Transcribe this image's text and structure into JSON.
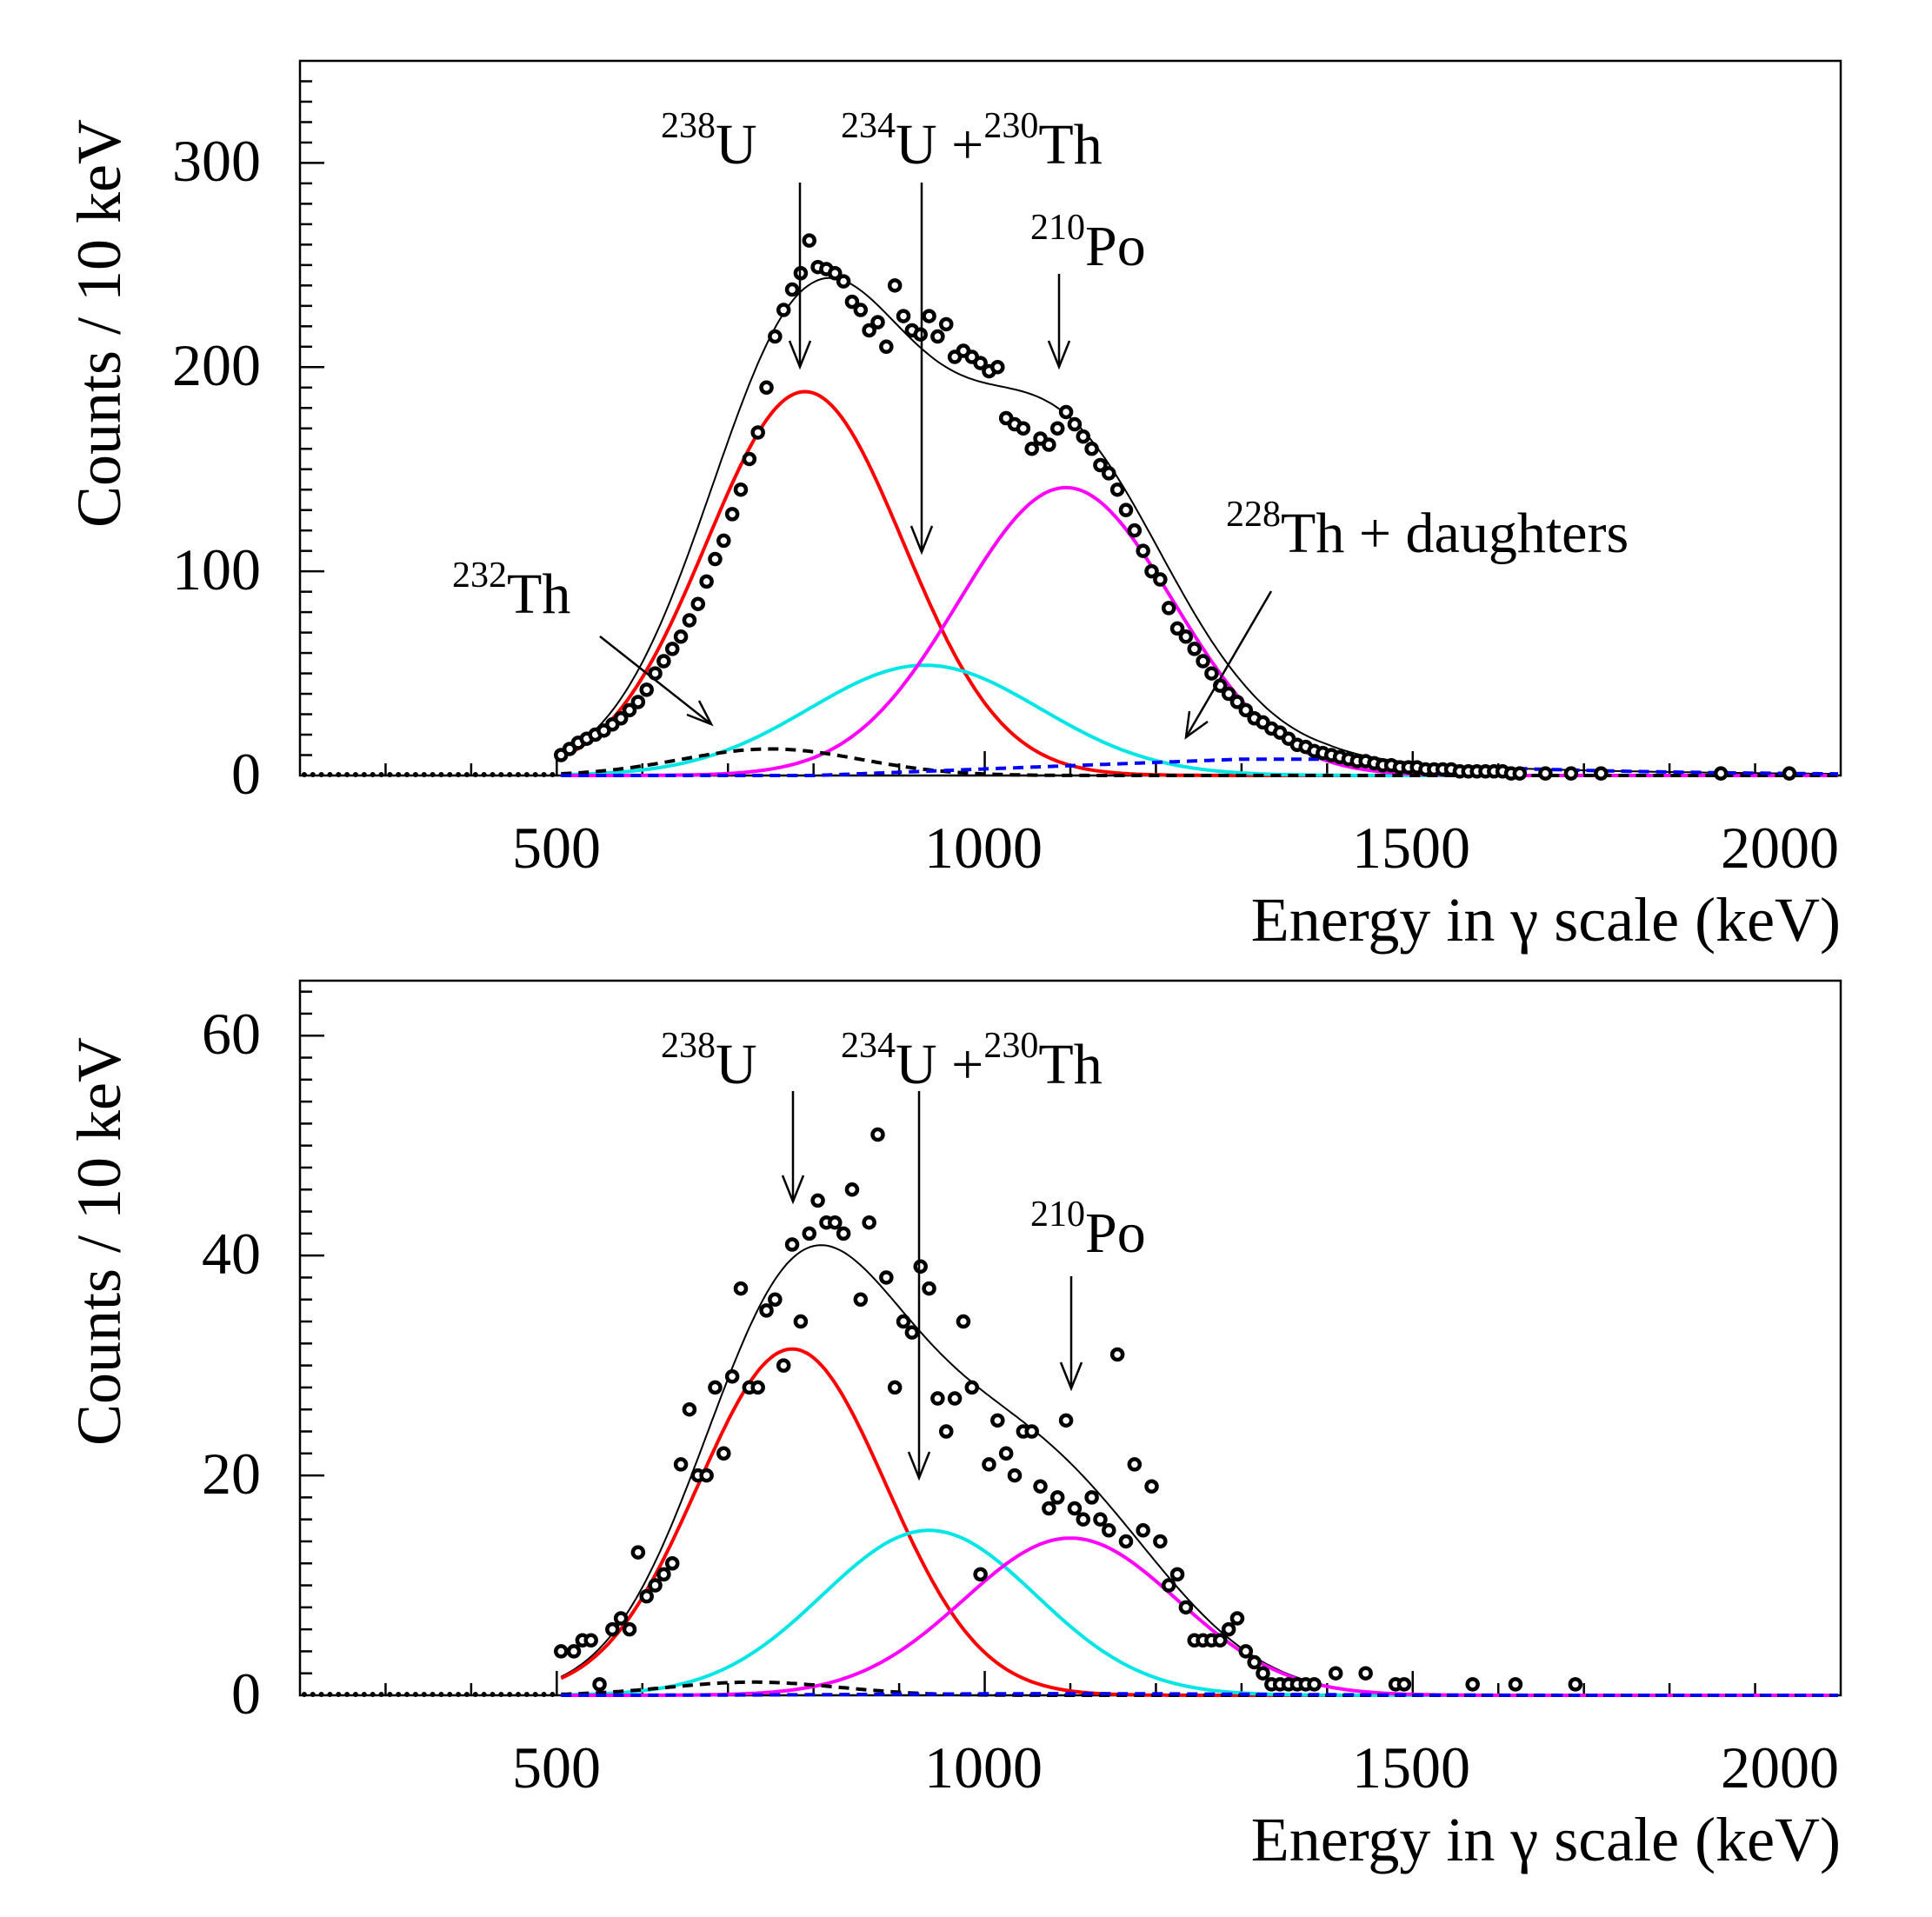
{
  "chart_data": [
    {
      "type": "scatter",
      "panel": "top",
      "xlabel": "Energy in γ scale (keV)",
      "ylabel": "Counts / 10 keV",
      "xlim": [
        200,
        2000
      ],
      "ylim": [
        0,
        350
      ],
      "xticks": [
        500,
        1000,
        1500,
        2000
      ],
      "yticks": [
        0,
        100,
        200,
        300
      ],
      "points": [
        [
          505,
          10
        ],
        [
          515,
          13
        ],
        [
          525,
          16
        ],
        [
          535,
          18
        ],
        [
          545,
          20
        ],
        [
          555,
          22
        ],
        [
          565,
          25
        ],
        [
          575,
          28
        ],
        [
          585,
          32
        ],
        [
          595,
          36
        ],
        [
          605,
          42
        ],
        [
          615,
          50
        ],
        [
          625,
          56
        ],
        [
          635,
          62
        ],
        [
          645,
          68
        ],
        [
          655,
          76
        ],
        [
          665,
          84
        ],
        [
          675,
          95
        ],
        [
          685,
          106
        ],
        [
          695,
          115
        ],
        [
          705,
          128
        ],
        [
          715,
          140
        ],
        [
          725,
          155
        ],
        [
          735,
          168
        ],
        [
          745,
          190
        ],
        [
          755,
          215
        ],
        [
          765,
          228
        ],
        [
          775,
          238
        ],
        [
          785,
          246
        ],
        [
          795,
          262
        ],
        [
          805,
          249
        ],
        [
          815,
          248
        ],
        [
          825,
          246
        ],
        [
          835,
          242
        ],
        [
          845,
          232
        ],
        [
          855,
          228
        ],
        [
          865,
          218
        ],
        [
          875,
          222
        ],
        [
          885,
          210
        ],
        [
          895,
          240
        ],
        [
          905,
          225
        ],
        [
          915,
          218
        ],
        [
          925,
          216
        ],
        [
          935,
          225
        ],
        [
          945,
          215
        ],
        [
          955,
          221
        ],
        [
          965,
          205
        ],
        [
          975,
          208
        ],
        [
          985,
          205
        ],
        [
          995,
          202
        ],
        [
          1005,
          198
        ],
        [
          1015,
          200
        ],
        [
          1025,
          175
        ],
        [
          1035,
          172
        ],
        [
          1045,
          170
        ],
        [
          1055,
          160
        ],
        [
          1065,
          165
        ],
        [
          1075,
          162
        ],
        [
          1085,
          170
        ],
        [
          1095,
          178
        ],
        [
          1105,
          172
        ],
        [
          1115,
          166
        ],
        [
          1125,
          160
        ],
        [
          1135,
          152
        ],
        [
          1145,
          148
        ],
        [
          1155,
          140
        ],
        [
          1165,
          130
        ],
        [
          1175,
          120
        ],
        [
          1185,
          110
        ],
        [
          1195,
          100
        ],
        [
          1205,
          96
        ],
        [
          1215,
          82
        ],
        [
          1225,
          72
        ],
        [
          1235,
          68
        ],
        [
          1245,
          62
        ],
        [
          1255,
          56
        ],
        [
          1265,
          50
        ],
        [
          1275,
          44
        ],
        [
          1285,
          40
        ],
        [
          1295,
          36
        ],
        [
          1305,
          32
        ],
        [
          1315,
          28
        ],
        [
          1325,
          26
        ],
        [
          1335,
          23
        ],
        [
          1345,
          21
        ],
        [
          1355,
          18
        ],
        [
          1365,
          15
        ],
        [
          1375,
          14
        ],
        [
          1385,
          12
        ],
        [
          1395,
          11
        ],
        [
          1405,
          10
        ],
        [
          1415,
          9
        ],
        [
          1425,
          8
        ],
        [
          1435,
          7
        ],
        [
          1445,
          7
        ],
        [
          1455,
          6
        ],
        [
          1465,
          5
        ],
        [
          1475,
          5
        ],
        [
          1485,
          4
        ],
        [
          1495,
          4
        ],
        [
          1505,
          4
        ],
        [
          1515,
          3
        ],
        [
          1525,
          3
        ],
        [
          1535,
          3
        ],
        [
          1545,
          3
        ],
        [
          1555,
          2
        ],
        [
          1565,
          2
        ],
        [
          1575,
          2
        ],
        [
          1585,
          2
        ],
        [
          1595,
          2
        ],
        [
          1605,
          2
        ],
        [
          1615,
          1
        ],
        [
          1625,
          1
        ],
        [
          1655,
          1
        ],
        [
          1685,
          1
        ],
        [
          1720,
          1
        ],
        [
          1860,
          1
        ],
        [
          1940,
          1
        ]
      ],
      "components": [
        {
          "name": "total fit",
          "color": "#000000",
          "dashed": false
        },
        {
          "name": "238U",
          "color": "#ff0000",
          "dashed": false,
          "mean": 790,
          "sigma": 115,
          "amp": 188
        },
        {
          "name": "234U + 230Th",
          "color": "#00e5e5",
          "dashed": false,
          "mean": 930,
          "sigma": 135,
          "amp": 54
        },
        {
          "name": "210Po",
          "color": "#ff00ff",
          "dashed": false,
          "mean": 1095,
          "sigma": 125,
          "amp": 141
        },
        {
          "name": "232Th",
          "color": "#000000",
          "dashed": true,
          "mean": 750,
          "sigma": 105,
          "amp": 13
        },
        {
          "name": "228Th + daughters",
          "color": "#0000ff",
          "dashed": true
        }
      ],
      "annotations": [
        {
          "iso": "238",
          "el": "U"
        },
        {
          "iso": "234",
          "el": "U +",
          "iso2": "230",
          "el2": "Th"
        },
        {
          "iso": "210",
          "el": "Po"
        },
        {
          "iso": "232",
          "el": "Th"
        },
        {
          "iso": "228",
          "el": "Th + daughters"
        }
      ]
    },
    {
      "type": "scatter",
      "panel": "bottom",
      "xlabel": "Energy in γ scale (keV)",
      "ylabel": "Counts / 10 keV",
      "xlim": [
        200,
        2000
      ],
      "ylim": [
        0,
        65
      ],
      "xticks": [
        500,
        1000,
        1500,
        2000
      ],
      "yticks": [
        0,
        20,
        40,
        60
      ],
      "points": [
        [
          505,
          4
        ],
        [
          520,
          4
        ],
        [
          530,
          5
        ],
        [
          540,
          5
        ],
        [
          550,
          1
        ],
        [
          565,
          6
        ],
        [
          575,
          7
        ],
        [
          585,
          6
        ],
        [
          595,
          13
        ],
        [
          605,
          9
        ],
        [
          615,
          10
        ],
        [
          625,
          11
        ],
        [
          635,
          12
        ],
        [
          645,
          21
        ],
        [
          655,
          26
        ],
        [
          665,
          20
        ],
        [
          675,
          20
        ],
        [
          685,
          28
        ],
        [
          695,
          22
        ],
        [
          705,
          29
        ],
        [
          715,
          37
        ],
        [
          725,
          28
        ],
        [
          735,
          28
        ],
        [
          745,
          35
        ],
        [
          755,
          36
        ],
        [
          765,
          30
        ],
        [
          775,
          41
        ],
        [
          785,
          34
        ],
        [
          795,
          42
        ],
        [
          805,
          45
        ],
        [
          815,
          43
        ],
        [
          825,
          43
        ],
        [
          835,
          42
        ],
        [
          845,
          46
        ],
        [
          855,
          36
        ],
        [
          865,
          43
        ],
        [
          875,
          51
        ],
        [
          885,
          38
        ],
        [
          895,
          28
        ],
        [
          905,
          34
        ],
        [
          915,
          33
        ],
        [
          925,
          39
        ],
        [
          935,
          37
        ],
        [
          945,
          27
        ],
        [
          955,
          24
        ],
        [
          965,
          27
        ],
        [
          975,
          34
        ],
        [
          985,
          28
        ],
        [
          995,
          11
        ],
        [
          1005,
          21
        ],
        [
          1015,
          25
        ],
        [
          1025,
          22
        ],
        [
          1035,
          20
        ],
        [
          1045,
          24
        ],
        [
          1055,
          24
        ],
        [
          1065,
          19
        ],
        [
          1075,
          17
        ],
        [
          1085,
          18
        ],
        [
          1095,
          25
        ],
        [
          1105,
          17
        ],
        [
          1115,
          16
        ],
        [
          1125,
          18
        ],
        [
          1135,
          16
        ],
        [
          1145,
          15
        ],
        [
          1155,
          31
        ],
        [
          1165,
          14
        ],
        [
          1175,
          21
        ],
        [
          1185,
          15
        ],
        [
          1195,
          19
        ],
        [
          1205,
          14
        ],
        [
          1215,
          10
        ],
        [
          1225,
          11
        ],
        [
          1235,
          8
        ],
        [
          1245,
          5
        ],
        [
          1255,
          5
        ],
        [
          1265,
          5
        ],
        [
          1275,
          5
        ],
        [
          1285,
          6
        ],
        [
          1295,
          7
        ],
        [
          1305,
          4
        ],
        [
          1315,
          3
        ],
        [
          1325,
          2
        ],
        [
          1335,
          1
        ],
        [
          1345,
          1
        ],
        [
          1355,
          1
        ],
        [
          1365,
          1
        ],
        [
          1375,
          1
        ],
        [
          1385,
          1
        ],
        [
          1410,
          2
        ],
        [
          1445,
          2
        ],
        [
          1480,
          1
        ],
        [
          1490,
          1
        ],
        [
          1570,
          1
        ],
        [
          1620,
          1
        ],
        [
          1690,
          1
        ]
      ],
      "components": [
        {
          "name": "total fit",
          "color": "#000000",
          "dashed": false
        },
        {
          "name": "238U",
          "color": "#ff0000",
          "dashed": false,
          "mean": 775,
          "sigma": 110,
          "amp": 31.5
        },
        {
          "name": "234U + 230Th",
          "color": "#00e5e5",
          "dashed": false,
          "mean": 935,
          "sigma": 125,
          "amp": 15
        },
        {
          "name": "210Po",
          "color": "#ff00ff",
          "dashed": false,
          "mean": 1100,
          "sigma": 125,
          "amp": 14.3
        },
        {
          "name": "232Th",
          "color": "#000000",
          "dashed": true,
          "mean": 730,
          "sigma": 100,
          "amp": 1.2
        },
        {
          "name": "228Th + daughters",
          "color": "#0000ff",
          "dashed": true
        }
      ],
      "annotations": [
        {
          "iso": "238",
          "el": "U"
        },
        {
          "iso": "234",
          "el": "U +",
          "iso2": "230",
          "el2": "Th"
        },
        {
          "iso": "210",
          "el": "Po"
        }
      ]
    }
  ]
}
